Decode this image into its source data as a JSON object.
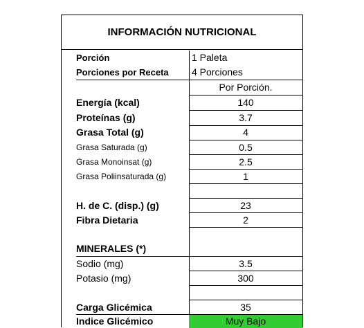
{
  "title": "INFORMACIÓN NUTRICIONAL",
  "serving": {
    "portion_label": "Porción",
    "portion_value": "1 Paleta",
    "per_recipe_label": "Porciones por Receta",
    "per_recipe_value": "4 Porciones",
    "per_portion_header": "Por Porción."
  },
  "rows": [
    {
      "label": "Energía (kcal)",
      "value": "140"
    },
    {
      "label": "Proteínas (g)",
      "value": "3.7"
    },
    {
      "label": "Grasa Total (g)",
      "value": "4"
    },
    {
      "label": "Grasa Saturada (g)",
      "value": "0.5"
    },
    {
      "label": "Grasa Monoinsat (g)",
      "value": "2.5"
    },
    {
      "label": "Grasa Poliinsaturada (g)",
      "value": "1"
    },
    {
      "label": "",
      "value": ""
    },
    {
      "label": "H. de C. (disp.) (g)",
      "value": "23"
    },
    {
      "label": "Fibra Dietaria",
      "value": "2"
    },
    {
      "label": "",
      "value": ""
    },
    {
      "label": "MINERALES (*)",
      "value": ""
    },
    {
      "label": "Sodio (mg)",
      "value": "3.5"
    },
    {
      "label": "Potasio (mg)",
      "value": "300"
    },
    {
      "label": "",
      "value": ""
    },
    {
      "label": "Carga Glicémica",
      "value": "35"
    },
    {
      "label": "Indice Glicémico",
      "value": "Muy Bajo"
    }
  ],
  "colors": {
    "glycemic_index_badge": "#33cc33"
  }
}
